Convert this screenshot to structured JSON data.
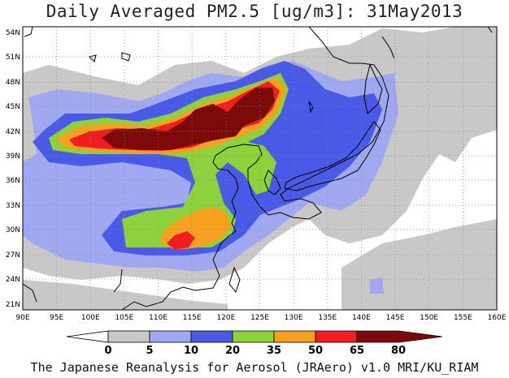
{
  "title": "Daily Averaged PM2.5 [ug/m3]: 31May2013",
  "footer": "The Japanese Reanalysis for Aerosol (JRAero) v1.0 MRI/KU_RIAM",
  "map": {
    "lon_labels": [
      "90E",
      "95E",
      "100E",
      "105E",
      "110E",
      "115E",
      "120E",
      "125E",
      "130E",
      "135E",
      "140E",
      "145E",
      "150E",
      "155E",
      "160E"
    ],
    "lat_labels": [
      "54N",
      "51N",
      "48N",
      "45N",
      "42N",
      "39N",
      "36N",
      "33N",
      "30N",
      "27N",
      "24N",
      "21N"
    ]
  },
  "legend": {
    "labels": [
      "0",
      "5",
      "10",
      "20",
      "35",
      "50",
      "65",
      "80"
    ],
    "colors": [
      "#ffffff",
      "#c8c8c8",
      "#a0a8f0",
      "#4a5ae6",
      "#8cd23c",
      "#f5a01e",
      "#f01e1e",
      "#7d0a0a"
    ]
  }
}
